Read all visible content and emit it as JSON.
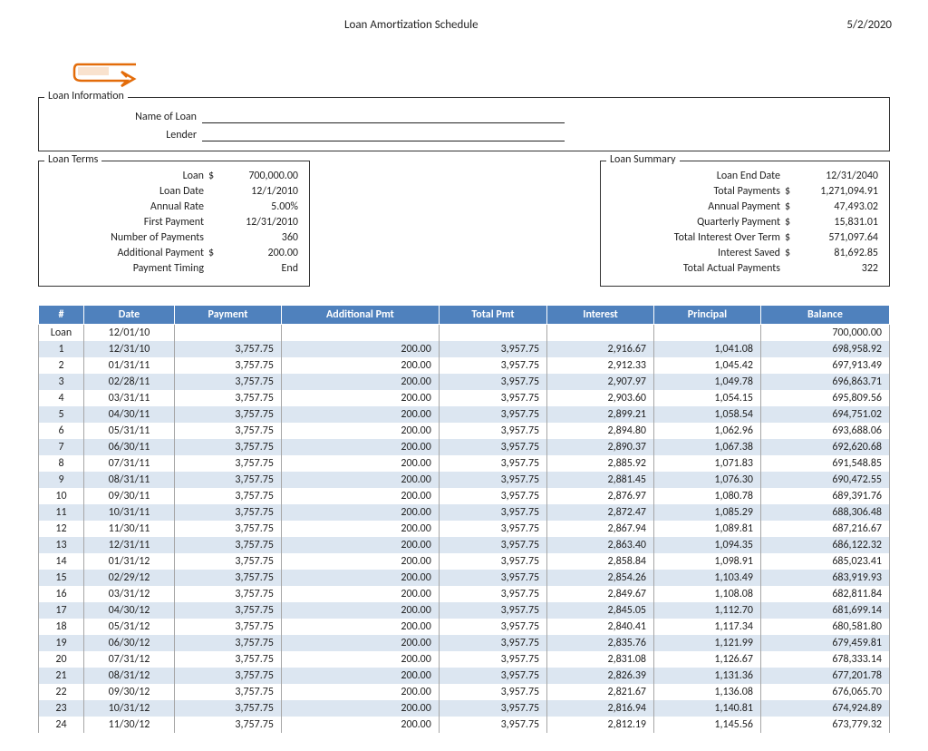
{
  "header": {
    "title": "Loan Amortization Schedule",
    "date": "5/2/2020"
  },
  "sections": {
    "loan_info_legend": "Loan Information",
    "name_label": "Name of Loan",
    "lender_label": "Lender",
    "terms_legend": "Loan Terms",
    "summary_legend": "Loan Summary"
  },
  "terms": [
    {
      "label": "Loan",
      "cur": "$",
      "val": "700,000.00"
    },
    {
      "label": "Loan Date",
      "cur": "",
      "val": "12/1/2010"
    },
    {
      "label": "Annual Rate",
      "cur": "",
      "val": "5.00%"
    },
    {
      "label": "First Payment",
      "cur": "",
      "val": "12/31/2010"
    },
    {
      "label": "Number of Payments",
      "cur": "",
      "val": "360"
    },
    {
      "label": "Additional Payment",
      "cur": "$",
      "val": "200.00"
    },
    {
      "label": "Payment Timing",
      "cur": "",
      "val": "End"
    }
  ],
  "summary": [
    {
      "label": "Loan End Date",
      "cur": "",
      "val": "12/31/2040"
    },
    {
      "label": "Total Payments",
      "cur": "$",
      "val": "1,271,094.91"
    },
    {
      "label": "Annual Payment",
      "cur": "$",
      "val": "47,493.02"
    },
    {
      "label": "Quarterly Payment",
      "cur": "$",
      "val": "15,831.01"
    },
    {
      "label": "Total Interest Over Term",
      "cur": "$",
      "val": "571,097.64"
    },
    {
      "label": "Interest Saved",
      "cur": "$",
      "val": "81,692.85"
    },
    {
      "label": "Total Actual Payments",
      "cur": "",
      "val": "322"
    }
  ],
  "table": {
    "columns": [
      "#",
      "Date",
      "Payment",
      "Additional Pmt",
      "Total Pmt",
      "Interest",
      "Principal",
      "Balance"
    ],
    "header_bg": "#4f81bd",
    "header_fg": "#ffffff",
    "row_even_bg": "#dce6f1",
    "row_odd_bg": "#ffffff",
    "rows": [
      [
        "Loan",
        "12/01/10",
        "",
        "",
        "",
        "",
        "",
        "700,000.00"
      ],
      [
        "1",
        "12/31/10",
        "3,757.75",
        "200.00",
        "3,957.75",
        "2,916.67",
        "1,041.08",
        "698,958.92"
      ],
      [
        "2",
        "01/31/11",
        "3,757.75",
        "200.00",
        "3,957.75",
        "2,912.33",
        "1,045.42",
        "697,913.49"
      ],
      [
        "3",
        "02/28/11",
        "3,757.75",
        "200.00",
        "3,957.75",
        "2,907.97",
        "1,049.78",
        "696,863.71"
      ],
      [
        "4",
        "03/31/11",
        "3,757.75",
        "200.00",
        "3,957.75",
        "2,903.60",
        "1,054.15",
        "695,809.56"
      ],
      [
        "5",
        "04/30/11",
        "3,757.75",
        "200.00",
        "3,957.75",
        "2,899.21",
        "1,058.54",
        "694,751.02"
      ],
      [
        "6",
        "05/31/11",
        "3,757.75",
        "200.00",
        "3,957.75",
        "2,894.80",
        "1,062.96",
        "693,688.06"
      ],
      [
        "7",
        "06/30/11",
        "3,757.75",
        "200.00",
        "3,957.75",
        "2,890.37",
        "1,067.38",
        "692,620.68"
      ],
      [
        "8",
        "07/31/11",
        "3,757.75",
        "200.00",
        "3,957.75",
        "2,885.92",
        "1,071.83",
        "691,548.85"
      ],
      [
        "9",
        "08/31/11",
        "3,757.75",
        "200.00",
        "3,957.75",
        "2,881.45",
        "1,076.30",
        "690,472.55"
      ],
      [
        "10",
        "09/30/11",
        "3,757.75",
        "200.00",
        "3,957.75",
        "2,876.97",
        "1,080.78",
        "689,391.76"
      ],
      [
        "11",
        "10/31/11",
        "3,757.75",
        "200.00",
        "3,957.75",
        "2,872.47",
        "1,085.29",
        "688,306.48"
      ],
      [
        "12",
        "11/30/11",
        "3,757.75",
        "200.00",
        "3,957.75",
        "2,867.94",
        "1,089.81",
        "687,216.67"
      ],
      [
        "13",
        "12/31/11",
        "3,757.75",
        "200.00",
        "3,957.75",
        "2,863.40",
        "1,094.35",
        "686,122.32"
      ],
      [
        "14",
        "01/31/12",
        "3,757.75",
        "200.00",
        "3,957.75",
        "2,858.84",
        "1,098.91",
        "685,023.41"
      ],
      [
        "15",
        "02/29/12",
        "3,757.75",
        "200.00",
        "3,957.75",
        "2,854.26",
        "1,103.49",
        "683,919.93"
      ],
      [
        "16",
        "03/31/12",
        "3,757.75",
        "200.00",
        "3,957.75",
        "2,849.67",
        "1,108.08",
        "682,811.84"
      ],
      [
        "17",
        "04/30/12",
        "3,757.75",
        "200.00",
        "3,957.75",
        "2,845.05",
        "1,112.70",
        "681,699.14"
      ],
      [
        "18",
        "05/31/12",
        "3,757.75",
        "200.00",
        "3,957.75",
        "2,840.41",
        "1,117.34",
        "680,581.80"
      ],
      [
        "19",
        "06/30/12",
        "3,757.75",
        "200.00",
        "3,957.75",
        "2,835.76",
        "1,121.99",
        "679,459.81"
      ],
      [
        "20",
        "07/31/12",
        "3,757.75",
        "200.00",
        "3,957.75",
        "2,831.08",
        "1,126.67",
        "678,333.14"
      ],
      [
        "21",
        "08/31/12",
        "3,757.75",
        "200.00",
        "3,957.75",
        "2,826.39",
        "1,131.36",
        "677,201.78"
      ],
      [
        "22",
        "09/30/12",
        "3,757.75",
        "200.00",
        "3,957.75",
        "2,821.67",
        "1,136.08",
        "676,065.70"
      ],
      [
        "23",
        "10/31/12",
        "3,757.75",
        "200.00",
        "3,957.75",
        "2,816.94",
        "1,140.81",
        "674,924.89"
      ],
      [
        "24",
        "11/30/12",
        "3,757.75",
        "200.00",
        "3,957.75",
        "2,812.19",
        "1,145.56",
        "673,779.32"
      ]
    ]
  }
}
